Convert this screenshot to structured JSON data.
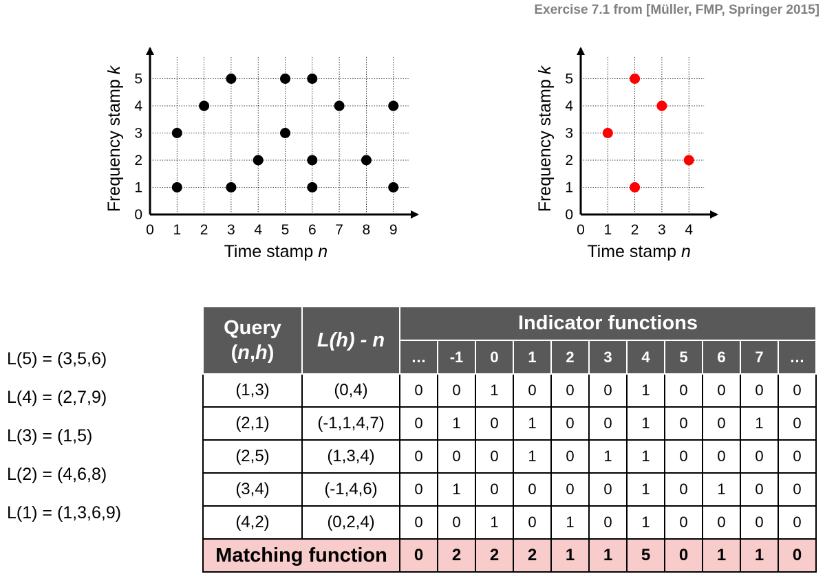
{
  "citation": "Exercise 7.1 from [Müller, FMP, Springer 2015]",
  "database_plot": {
    "x_label": "Time stamp",
    "x_var": "n",
    "y_label": "Frequency stamp",
    "y_var": "k",
    "x_ticks": [
      "0",
      "1",
      "2",
      "3",
      "4",
      "5",
      "6",
      "7",
      "8",
      "9"
    ],
    "y_ticks": [
      "0",
      "1",
      "2",
      "3",
      "4",
      "5"
    ],
    "point_color": "#000000",
    "points": [
      [
        1,
        1
      ],
      [
        1,
        3
      ],
      [
        2,
        4
      ],
      [
        3,
        1
      ],
      [
        3,
        5
      ],
      [
        4,
        2
      ],
      [
        5,
        3
      ],
      [
        5,
        5
      ],
      [
        6,
        1
      ],
      [
        6,
        2
      ],
      [
        6,
        5
      ],
      [
        7,
        4
      ],
      [
        8,
        2
      ],
      [
        9,
        1
      ],
      [
        9,
        4
      ]
    ]
  },
  "query_plot": {
    "x_label": "Time stamp",
    "x_var": "n",
    "y_label": "Frequency stamp",
    "y_var": "k",
    "x_ticks": [
      "0",
      "1",
      "2",
      "3",
      "4"
    ],
    "y_ticks": [
      "0",
      "1",
      "2",
      "3",
      "4",
      "5"
    ],
    "point_color": "#ff0000",
    "points": [
      [
        1,
        3
      ],
      [
        2,
        1
      ],
      [
        2,
        5
      ],
      [
        3,
        4
      ],
      [
        4,
        2
      ]
    ]
  },
  "inverted_lists": [
    "L(5) = (3,5,6)",
    "L(4) = (2,7,9)",
    "L(3) = (1,5)",
    "L(2) = (4,6,8)",
    "L(1) = (1,3,6,9)"
  ],
  "table": {
    "query_header_line1": "Query",
    "query_header_paren_open": "(",
    "query_header_n": "n",
    "query_header_comma": ",",
    "query_header_h": "h",
    "query_header_paren_close": ")",
    "lh_header_L": "L(",
    "lh_header_h": "h",
    "lh_header_mid": ") - ",
    "lh_header_n": "n",
    "indicator_header": "Indicator functions",
    "shift_columns": [
      "…",
      "-1",
      "0",
      "1",
      "2",
      "3",
      "4",
      "5",
      "6",
      "7",
      "…"
    ],
    "rows": [
      {
        "query": "(1,3)",
        "list": "(0,4)",
        "values": [
          "0",
          "0",
          "1",
          "0",
          "0",
          "0",
          "1",
          "0",
          "0",
          "0",
          "0"
        ]
      },
      {
        "query": "(2,1)",
        "list": "(-1,1,4,7)",
        "values": [
          "0",
          "1",
          "0",
          "1",
          "0",
          "0",
          "1",
          "0",
          "0",
          "1",
          "0"
        ]
      },
      {
        "query": "(2,5)",
        "list": "(1,3,4)",
        "values": [
          "0",
          "0",
          "0",
          "1",
          "0",
          "1",
          "1",
          "0",
          "0",
          "0",
          "0"
        ]
      },
      {
        "query": "(3,4)",
        "list": "(-1,4,6)",
        "values": [
          "0",
          "1",
          "0",
          "0",
          "0",
          "0",
          "1",
          "0",
          "1",
          "0",
          "0"
        ]
      },
      {
        "query": "(4,2)",
        "list": "(0,2,4)",
        "values": [
          "0",
          "0",
          "1",
          "0",
          "1",
          "0",
          "1",
          "0",
          "0",
          "0",
          "0"
        ]
      }
    ],
    "matching_label": "Matching function",
    "matching_values": [
      "0",
      "2",
      "2",
      "2",
      "1",
      "1",
      "5",
      "0",
      "1",
      "1",
      "0"
    ]
  },
  "colors": {
    "header_bg": "#595959",
    "matching_bg": "#f9cccc",
    "query_point": "#ff0000",
    "database_point": "#000000"
  }
}
